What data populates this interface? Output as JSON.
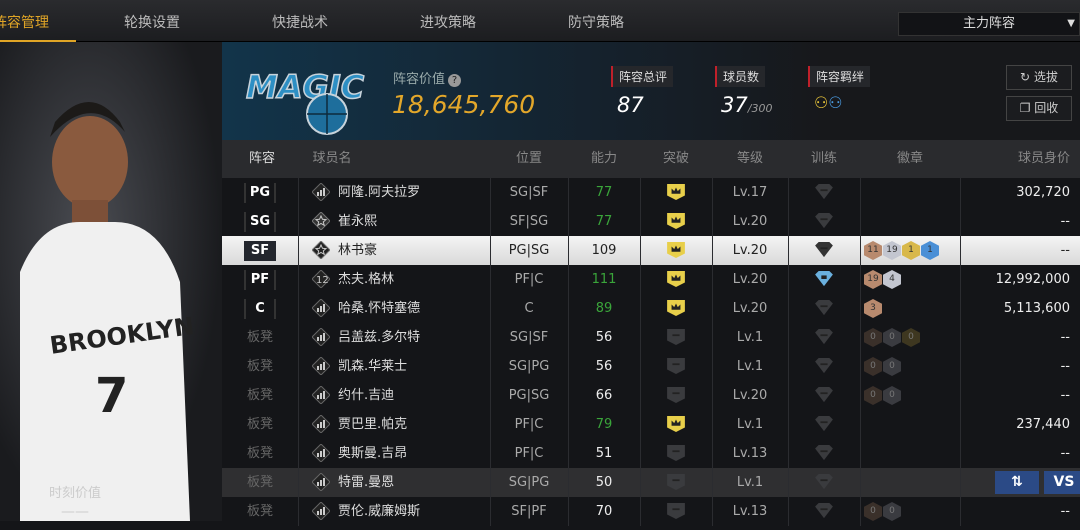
{
  "tabs": [
    {
      "label": "阵容管理",
      "active": true
    },
    {
      "label": "轮换设置"
    },
    {
      "label": "快捷战术"
    },
    {
      "label": "进攻策略"
    },
    {
      "label": "防守策略"
    }
  ],
  "lineup_select": {
    "value": "主力阵容"
  },
  "left_panel": {
    "label": "时刻价值",
    "value": "——",
    "jersey_text": "BROOKLYN",
    "jersey_number": "7"
  },
  "header": {
    "team_logo": "MAGIC",
    "value_label": "阵容价值",
    "value": "18,645,760",
    "overall_label": "阵容总评",
    "overall": "87",
    "players_label": "球员数",
    "players": "37",
    "players_max": "/300",
    "chemistry_label": "阵容羁绊",
    "draft_button": "选拔",
    "recycle_button": "回收"
  },
  "columns": [
    "阵容",
    "球员名",
    "位置",
    "能力",
    "突破",
    "等级",
    "训练",
    "徽章",
    "球员身价"
  ],
  "colors": {
    "accent": "#e0a526",
    "green": "#3aa53a",
    "red": "#c0202a",
    "button_blue": "#2b4a86"
  },
  "rows": [
    {
      "slot": "PG",
      "name": "阿隆.阿夫拉罗",
      "icon": "bars",
      "pos": "SG|SF",
      "ability": "77",
      "green": true,
      "breakthrough": true,
      "level": "Lv.17",
      "train": "none",
      "badges": [],
      "value": "302,720"
    },
    {
      "slot": "SG",
      "name": "崔永熙",
      "icon": "star",
      "pos": "SF|SG",
      "ability": "77",
      "green": true,
      "breakthrough": true,
      "level": "Lv.20",
      "train": "none",
      "badges": [],
      "value": "--"
    },
    {
      "slot": "SF",
      "name": "林书豪",
      "icon": "star",
      "pos": "PG|SG",
      "ability": "109",
      "breakthrough": true,
      "level": "Lv.20",
      "train": "none",
      "badges": [
        {
          "t": "bronze",
          "n": "11"
        },
        {
          "t": "silver",
          "n": "19"
        },
        {
          "t": "gold",
          "n": "1"
        },
        {
          "t": "blue",
          "n": "1"
        }
      ],
      "value": "--",
      "selected": true
    },
    {
      "slot": "PF",
      "name": "杰夫.格林",
      "icon": "12",
      "pos": "PF|C",
      "ability": "111",
      "green": true,
      "breakthrough": true,
      "level": "Lv.20",
      "train": "blue",
      "badges": [
        {
          "t": "bronze",
          "n": "19"
        },
        {
          "t": "silver",
          "n": "4"
        }
      ],
      "value": "12,992,000"
    },
    {
      "slot": "C",
      "name": "哈桑.怀特塞德",
      "icon": "bars",
      "pos": "C",
      "ability": "89",
      "green": true,
      "breakthrough": true,
      "level": "Lv.20",
      "train": "none",
      "badges": [
        {
          "t": "bronze",
          "n": "3"
        }
      ],
      "value": "5,113,600"
    },
    {
      "slot": "板凳",
      "name": "吕盖兹.多尔特",
      "icon": "bars",
      "pos": "SG|SF",
      "ability": "56",
      "breakthrough": false,
      "level": "Lv.1",
      "train": "none",
      "badges": [
        {
          "t": "dbronze",
          "n": "0"
        },
        {
          "t": "dsilver",
          "n": "0"
        },
        {
          "t": "dgold",
          "n": "0"
        }
      ],
      "value": "--"
    },
    {
      "slot": "板凳",
      "name": "凯森.华莱士",
      "icon": "bars",
      "pos": "SG|PG",
      "ability": "56",
      "breakthrough": false,
      "level": "Lv.1",
      "train": "none",
      "badges": [
        {
          "t": "dbronze",
          "n": "0"
        },
        {
          "t": "dsilver",
          "n": "0"
        }
      ],
      "value": "--"
    },
    {
      "slot": "板凳",
      "name": "约什.吉迪",
      "icon": "bars",
      "pos": "PG|SG",
      "ability": "66",
      "breakthrough": false,
      "level": "Lv.20",
      "train": "none",
      "badges": [
        {
          "t": "dbronze",
          "n": "0"
        },
        {
          "t": "dsilver",
          "n": "0"
        }
      ],
      "value": "--"
    },
    {
      "slot": "板凳",
      "name": "贾巴里.帕克",
      "icon": "bars",
      "pos": "PF|C",
      "ability": "79",
      "green": true,
      "breakthrough": true,
      "level": "Lv.1",
      "train": "none",
      "badges": [],
      "value": "237,440"
    },
    {
      "slot": "板凳",
      "name": "奥斯曼.吉昂",
      "icon": "bars",
      "pos": "PF|C",
      "ability": "51",
      "breakthrough": false,
      "level": "Lv.13",
      "train": "none",
      "badges": [],
      "value": "--"
    },
    {
      "slot": "板凳",
      "name": "特雷.曼恩",
      "icon": "bars",
      "pos": "SG|PG",
      "ability": "50",
      "breakthrough": false,
      "level": "Lv.1",
      "train": "none",
      "badges": [],
      "value": "",
      "hover": true,
      "actions": {
        "swap": "⇅",
        "vs": "VS"
      }
    },
    {
      "slot": "板凳",
      "name": "贾伦.威廉姆斯",
      "icon": "bars",
      "pos": "SF|PF",
      "ability": "70",
      "breakthrough": false,
      "level": "Lv.13",
      "train": "none",
      "badges": [
        {
          "t": "dbronze",
          "n": "0"
        },
        {
          "t": "dsilver",
          "n": "0"
        }
      ],
      "value": "--"
    }
  ]
}
